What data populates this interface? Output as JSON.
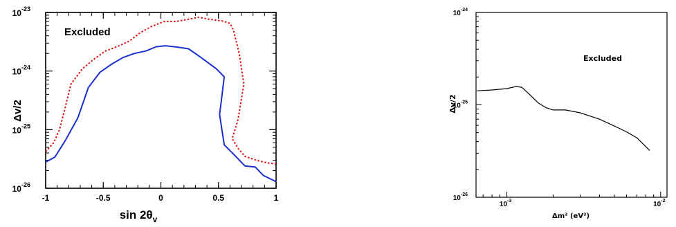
{
  "chart_data": [
    {
      "type": "line",
      "xlabel": "sin 2θ",
      "xlabel_sub": "v",
      "ylabel": "Δv/2",
      "annotation": "Excluded",
      "xlim": [
        -1,
        1
      ],
      "ylim": [
        1e-26,
        1e-23
      ],
      "yscale": "log",
      "x_ticks": [
        {
          "value": -1,
          "label": "-1"
        },
        {
          "value": -0.5,
          "label": "-0.5"
        },
        {
          "value": 0,
          "label": "0"
        },
        {
          "value": 0.5,
          "label": "0.5"
        },
        {
          "value": 1,
          "label": "1"
        }
      ],
      "y_ticks": [
        {
          "value": 1e-26,
          "base": "10",
          "exp": "-26"
        },
        {
          "value": 1e-25,
          "base": "10",
          "exp": "-25"
        },
        {
          "value": 1e-24,
          "base": "10",
          "exp": "-24"
        },
        {
          "value": 1e-23,
          "base": "10",
          "exp": "-23"
        }
      ],
      "series": [
        {
          "color": "#1a2fd0",
          "style": "solid",
          "x": [
            -1.0,
            -0.92,
            -0.83,
            -0.72,
            -0.63,
            -0.53,
            -0.43,
            -0.33,
            -0.23,
            -0.13,
            -0.04,
            0.04,
            0.15,
            0.24,
            0.34,
            0.48,
            0.55,
            0.51,
            0.55,
            0.65,
            0.73,
            0.82,
            0.89,
            1.0
          ],
          "y": [
            2.8e-26,
            3.4e-26,
            6.5e-26,
            1.6e-25,
            5.2e-25,
            9.5e-25,
            1.3e-24,
            1.7e-24,
            2e-24,
            2.2e-24,
            2.6e-24,
            2.7e-24,
            2.55e-24,
            2.4e-24,
            1.75e-24,
            1.1e-24,
            8e-25,
            1.8e-25,
            5.5e-26,
            3.5e-26,
            2.4e-26,
            2.3e-26,
            1.65e-26,
            1.3e-26
          ]
        },
        {
          "color": "#e01010",
          "style": "dotted",
          "x": [
            -1.0,
            -0.93,
            -0.88,
            -0.83,
            -0.78,
            -0.68,
            -0.58,
            -0.48,
            -0.38,
            -0.28,
            -0.18,
            -0.08,
            0.03,
            0.13,
            0.23,
            0.33,
            0.43,
            0.53,
            0.6,
            0.63,
            0.68,
            0.72,
            0.67,
            0.62,
            0.67,
            0.73,
            0.83,
            0.93,
            1.0
          ],
          "y": [
            4.2e-26,
            6e-26,
            1e-25,
            2.4e-25,
            6e-25,
            1.1e-24,
            1.6e-24,
            2.2e-24,
            2.6e-24,
            3.2e-24,
            4.5e-24,
            5.8e-24,
            7e-24,
            7e-24,
            7.6e-24,
            8.3e-24,
            7.6e-24,
            7.2e-24,
            6.5e-24,
            5e-24,
            2e-24,
            6e-25,
            1.5e-25,
            7e-26,
            4.8e-26,
            3.5e-26,
            3e-26,
            2.7e-26,
            2.6e-26
          ]
        }
      ]
    },
    {
      "type": "line",
      "xlabel": "Δm² (eV²)",
      "ylabel": "Δv/2",
      "annotation": "Excluded",
      "xscale": "log",
      "yscale": "log",
      "xlim": [
        0.00063,
        0.011
      ],
      "ylim": [
        1e-26,
        1e-24
      ],
      "x_ticks": [
        {
          "value": 0.001,
          "base": "10",
          "exp": "-3"
        },
        {
          "value": 0.01,
          "base": "10",
          "exp": "-2"
        }
      ],
      "y_ticks": [
        {
          "value": 1e-26,
          "base": "10",
          "exp": "-26"
        },
        {
          "value": 1e-25,
          "base": "10",
          "exp": "-25"
        },
        {
          "value": 1e-24,
          "base": "10",
          "exp": "-24"
        }
      ],
      "series": [
        {
          "color": "#000000",
          "style": "solid",
          "x": [
            0.00064,
            0.0008,
            0.001,
            0.00115,
            0.00125,
            0.0014,
            0.0016,
            0.0018,
            0.002,
            0.0024,
            0.003,
            0.004,
            0.005,
            0.006,
            0.007,
            0.0085
          ],
          "y": [
            1.42e-25,
            1.45e-25,
            1.5e-25,
            1.58e-25,
            1.55e-25,
            1.3e-25,
            1.05e-25,
            9.3e-26,
            8.8e-26,
            8.8e-26,
            8.2e-26,
            7e-26,
            5.9e-26,
            5.1e-26,
            4.4e-26,
            3.2e-26
          ]
        }
      ]
    }
  ]
}
